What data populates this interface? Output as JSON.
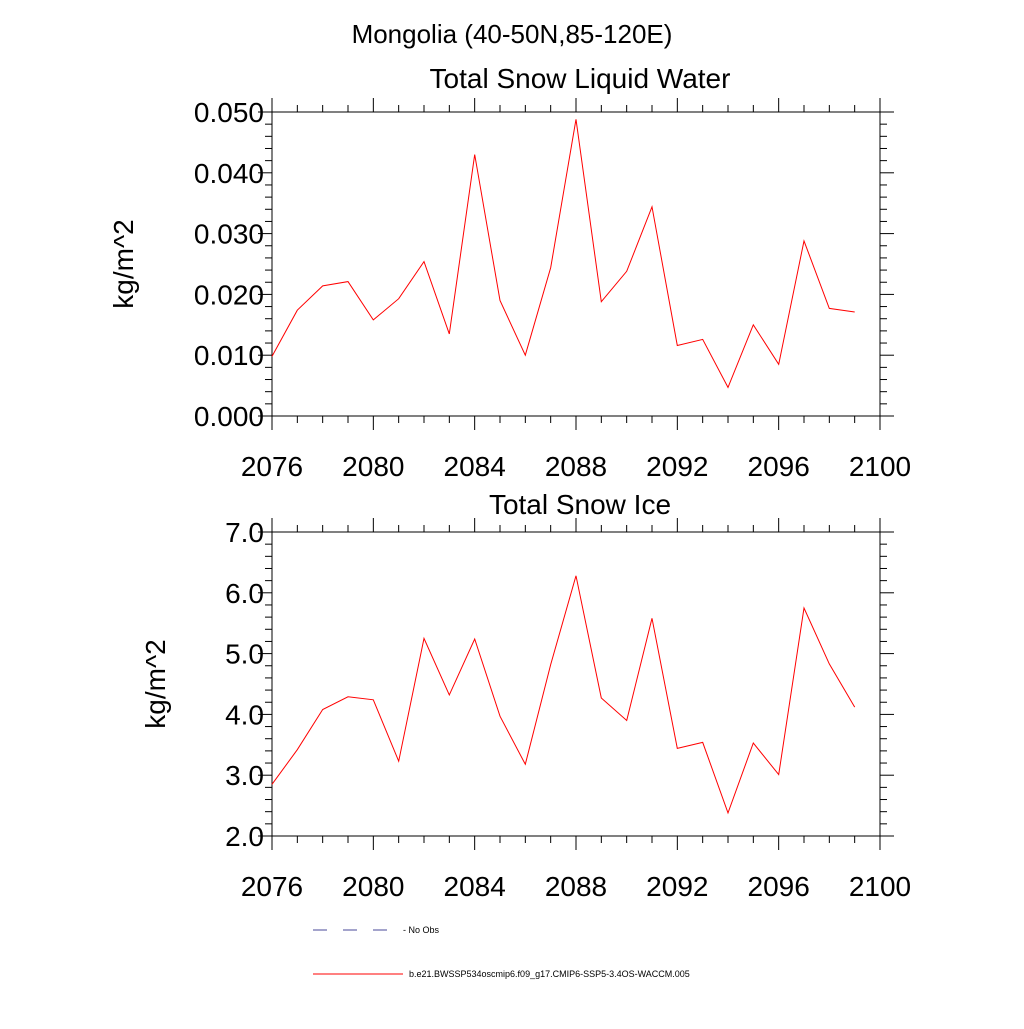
{
  "page_title": "Mongolia (40-50N,85-120E)",
  "chart_data": [
    {
      "type": "line",
      "title": "Total Snow Liquid Water",
      "xlabel": "",
      "ylabel": "kg/m^2",
      "xlim": [
        2076,
        2100
      ],
      "ylim": [
        0.0,
        0.05
      ],
      "x_ticks": [
        2076,
        2080,
        2084,
        2088,
        2092,
        2096,
        2100
      ],
      "x_tick_labels": [
        "2076",
        "2080",
        "2084",
        "2088",
        "2092",
        "2096",
        "2100"
      ],
      "y_ticks": [
        0.0,
        0.01,
        0.02,
        0.03,
        0.04,
        0.05
      ],
      "y_tick_labels": [
        "0.000",
        "0.010",
        "0.020",
        "0.030",
        "0.040",
        "0.050"
      ],
      "grid": false,
      "series": [
        {
          "name": "b.e21.BWSSP534oscmip6.f09_g17.CMIP6-SSP5-3.4OS-WACCM.005",
          "color": "#ff0000",
          "x": [
            2076,
            2077,
            2078,
            2079,
            2080,
            2081,
            2082,
            2083,
            2084,
            2085,
            2086,
            2087,
            2088,
            2089,
            2090,
            2091,
            2092,
            2093,
            2094,
            2095,
            2096,
            2097,
            2098,
            2099
          ],
          "values": [
            0.0098,
            0.0174,
            0.0214,
            0.0221,
            0.0158,
            0.0193,
            0.0254,
            0.0135,
            0.043,
            0.019,
            0.01,
            0.0244,
            0.0488,
            0.0188,
            0.0238,
            0.0344,
            0.0116,
            0.0126,
            0.0047,
            0.015,
            0.0085,
            0.0288,
            0.0177,
            0.0171
          ]
        }
      ]
    },
    {
      "type": "line",
      "title": "Total Snow Ice",
      "xlabel": "",
      "ylabel": "kg/m^2",
      "xlim": [
        2076,
        2100
      ],
      "ylim": [
        2.0,
        7.0
      ],
      "x_ticks": [
        2076,
        2080,
        2084,
        2088,
        2092,
        2096,
        2100
      ],
      "x_tick_labels": [
        "2076",
        "2080",
        "2084",
        "2088",
        "2092",
        "2096",
        "2100"
      ],
      "y_ticks": [
        2.0,
        3.0,
        4.0,
        5.0,
        6.0,
        7.0
      ],
      "y_tick_labels": [
        "2.0",
        "3.0",
        "4.0",
        "5.0",
        "6.0",
        "7.0"
      ],
      "grid": false,
      "series": [
        {
          "name": "b.e21.BWSSP534oscmip6.f09_g17.CMIP6-SSP5-3.4OS-WACCM.005",
          "color": "#ff0000",
          "x": [
            2076,
            2077,
            2078,
            2079,
            2080,
            2081,
            2082,
            2083,
            2084,
            2085,
            2086,
            2087,
            2088,
            2089,
            2090,
            2091,
            2092,
            2093,
            2094,
            2095,
            2096,
            2097,
            2098,
            2099
          ],
          "values": [
            2.85,
            3.42,
            4.08,
            4.29,
            4.24,
            3.23,
            5.25,
            4.32,
            5.24,
            3.97,
            3.18,
            4.82,
            6.28,
            4.27,
            3.9,
            5.58,
            3.44,
            3.54,
            2.38,
            3.53,
            3.01,
            5.75,
            4.83,
            4.12
          ]
        }
      ]
    }
  ],
  "legend": {
    "placement": "bottom-left",
    "items": [
      {
        "label": "No Obs",
        "style": "dashed",
        "color": "#4a4a9a"
      },
      {
        "label": "b.e21.BWSSP534oscmip6.f09_g17.CMIP6-SSP5-3.4OS-WACCM.005",
        "style": "solid",
        "color": "#ff0000"
      }
    ]
  }
}
